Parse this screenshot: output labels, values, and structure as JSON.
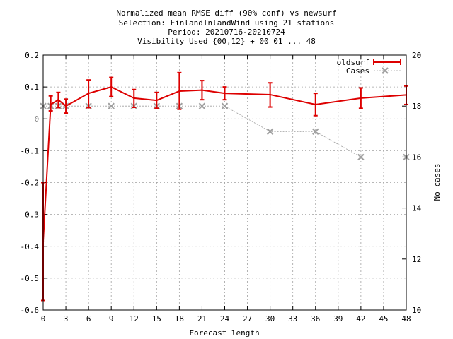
{
  "chart_data": {
    "type": "line",
    "title_lines": [
      "Normalized mean RMSE diff (90% conf) vs newsurf",
      "Selection: FinlandInlandWind using    21 stations",
      "Period: 20210716-20210724",
      "Visibility   Used {00,12} + 00 01 ... 48"
    ],
    "xlabel": "Forecast length",
    "ylabel_right": "No cases",
    "xlim": [
      0,
      48
    ],
    "ylim_left": [
      -0.6,
      0.2
    ],
    "ylim_right": [
      10,
      20
    ],
    "x_ticks": [
      0,
      3,
      6,
      9,
      12,
      15,
      18,
      21,
      24,
      27,
      30,
      33,
      36,
      39,
      42,
      45,
      48
    ],
    "y_left_ticks": [
      -0.6,
      -0.5,
      -0.4,
      -0.3,
      -0.2,
      -0.1,
      0,
      0.1,
      0.2
    ],
    "y_left_tick_labels": [
      "-0.6",
      "-0.5",
      "-0.4",
      "-0.3",
      "-0.2",
      "-0.1",
      "0",
      "0.1",
      "0.2"
    ],
    "y_right_ticks": [
      10,
      12,
      14,
      16,
      18,
      20
    ],
    "grid": true,
    "legend_placement": "top-right",
    "series": [
      {
        "name": "oldsurf",
        "axis": "left",
        "color": "#dd0000",
        "x": [
          0,
          1,
          2,
          3,
          6,
          9,
          12,
          15,
          18,
          21,
          24,
          30,
          36,
          42,
          48
        ],
        "y": [
          -0.385,
          0.045,
          0.06,
          0.04,
          0.08,
          0.1,
          0.065,
          0.058,
          0.087,
          0.09,
          0.08,
          0.076,
          0.045,
          0.065,
          0.075
        ],
        "err_low": [
          -0.57,
          0.025,
          0.035,
          0.018,
          0.035,
          0.07,
          0.036,
          0.033,
          0.03,
          0.06,
          0.06,
          0.037,
          0.01,
          0.033,
          0.045
        ],
        "err_high": [
          -0.2,
          0.072,
          0.083,
          0.062,
          0.122,
          0.13,
          0.092,
          0.083,
          0.145,
          0.12,
          0.1,
          0.113,
          0.08,
          0.097,
          0.103
        ]
      },
      {
        "name": "Cases",
        "axis": "right",
        "color": "#a0a0a0",
        "x": [
          0,
          1,
          2,
          3,
          6,
          9,
          12,
          15,
          18,
          21,
          24,
          30,
          36,
          42,
          48
        ],
        "y": [
          18,
          18,
          18,
          18,
          18,
          18,
          18,
          18,
          18,
          18,
          18,
          17,
          17,
          16,
          16
        ]
      }
    ]
  }
}
